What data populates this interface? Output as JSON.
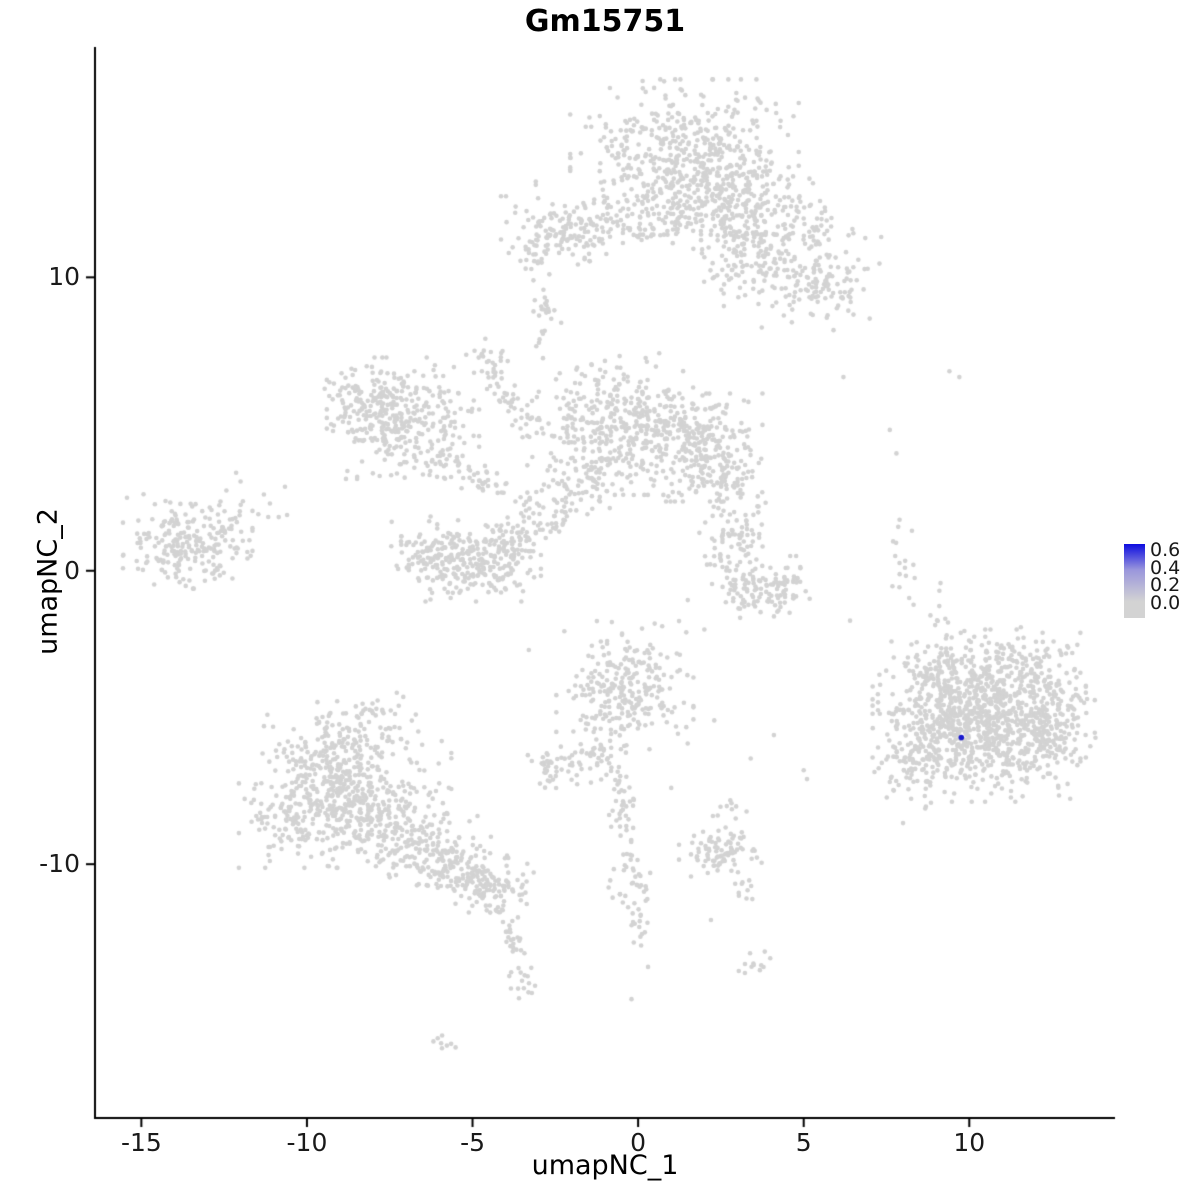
{
  "title": "Gm15751",
  "axes": {
    "x": {
      "label": "umapNC_1",
      "ticks": [
        -15,
        -10,
        -5,
        0,
        5,
        10
      ]
    },
    "y": {
      "label": "umapNC_2",
      "ticks": [
        10,
        0,
        -10
      ]
    }
  },
  "legend": {
    "labels": [
      "0.6",
      "0.4",
      "0.2",
      "0.0"
    ],
    "high_color": "#0D0DE0",
    "mid_color": "#9A96DC",
    "low_color": "#D3D3D3"
  },
  "chart_data": {
    "type": "scatter",
    "title": "Gm15751",
    "xlabel": "umapNC_1",
    "ylabel": "umapNC_2",
    "xlim": [
      -16.4,
      14.4
    ],
    "ylim": [
      -18.65,
      17.85
    ],
    "grid": false,
    "legend_position": "right",
    "point_color": "#D3D3D3",
    "point_radius": 2.3,
    "clusters": [
      [
        1.4,
        14.1,
        1.5,
        1.15,
        480
      ],
      [
        2.6,
        12.8,
        1.0,
        0.8,
        180
      ],
      [
        4.2,
        11.6,
        1.0,
        0.8,
        160
      ],
      [
        5.5,
        9.9,
        0.8,
        0.7,
        130
      ],
      [
        3.1,
        10.4,
        0.6,
        0.6,
        70
      ],
      [
        -0.1,
        12.0,
        1.3,
        0.55,
        130
      ],
      [
        -2.3,
        11.5,
        0.8,
        0.55,
        120
      ],
      [
        -2.8,
        8.9,
        0.25,
        0.3,
        12
      ],
      [
        -4.5,
        7.1,
        0.3,
        0.35,
        26
      ],
      [
        -7.1,
        5.2,
        1.0,
        0.9,
        300
      ],
      [
        -8.2,
        5.6,
        0.55,
        0.55,
        80
      ],
      [
        -0.7,
        5.0,
        1.15,
        1.05,
        360
      ],
      [
        1.8,
        4.2,
        0.85,
        0.8,
        260
      ],
      [
        2.7,
        3.0,
        0.5,
        0.5,
        60
      ],
      [
        -1.6,
        3.0,
        0.5,
        0.6,
        70
      ],
      [
        -6.1,
        0.7,
        0.6,
        0.5,
        90
      ],
      [
        -5.2,
        0.1,
        0.75,
        0.5,
        130
      ],
      [
        -4.2,
        0.4,
        0.55,
        0.5,
        90
      ],
      [
        -3.8,
        1.2,
        0.4,
        0.4,
        50
      ],
      [
        -13.6,
        1.0,
        0.85,
        0.7,
        230
      ],
      [
        -12.0,
        2.3,
        0.6,
        0.5,
        16
      ],
      [
        3.0,
        1.2,
        0.5,
        0.45,
        60
      ],
      [
        3.0,
        -0.3,
        0.4,
        0.4,
        45
      ],
      [
        3.8,
        -0.8,
        0.6,
        0.35,
        70
      ],
      [
        4.5,
        -0.3,
        0.3,
        0.35,
        25
      ],
      [
        -0.4,
        -3.9,
        0.9,
        0.95,
        260
      ],
      [
        -1.2,
        -6.3,
        0.4,
        0.4,
        40
      ],
      [
        -2.5,
        -6.8,
        0.45,
        0.35,
        45
      ],
      [
        -0.2,
        -10.6,
        0.3,
        0.4,
        30
      ],
      [
        2.5,
        -9.5,
        0.55,
        0.4,
        90
      ],
      [
        2.7,
        -8.0,
        0.25,
        0.3,
        10
      ],
      [
        3.2,
        -10.9,
        0.25,
        0.25,
        10
      ],
      [
        3.3,
        -13.3,
        0.3,
        0.25,
        12
      ],
      [
        -9.2,
        -6.4,
        1.0,
        0.85,
        220
      ],
      [
        -8.4,
        -8.0,
        1.2,
        0.9,
        300
      ],
      [
        -10.1,
        -8.4,
        0.85,
        0.75,
        160
      ],
      [
        -8.0,
        -5.2,
        0.9,
        0.5,
        50
      ],
      [
        -6.6,
        -9.3,
        0.8,
        0.6,
        130
      ],
      [
        -5.3,
        -10.2,
        0.6,
        0.5,
        110
      ],
      [
        -4.3,
        -10.9,
        0.5,
        0.45,
        90
      ],
      [
        -3.5,
        -14.0,
        0.3,
        0.3,
        16
      ],
      [
        -6.0,
        -16.1,
        0.35,
        0.2,
        8
      ],
      [
        10.3,
        -4.3,
        1.4,
        1.0,
        420
      ],
      [
        10.8,
        -5.8,
        1.3,
        0.9,
        380
      ],
      [
        9.2,
        -5.3,
        0.85,
        0.85,
        200
      ],
      [
        12.2,
        -5.1,
        0.7,
        0.7,
        140
      ],
      [
        11.4,
        -3.2,
        0.85,
        0.6,
        120
      ],
      [
        8.3,
        -6.6,
        0.6,
        0.7,
        70
      ],
      [
        9.0,
        -3.4,
        0.5,
        0.5,
        60
      ]
    ],
    "strands": [
      [
        -4.3,
        6.6,
        -3.4,
        4.8,
        35,
        0.22
      ],
      [
        -6.2,
        4.0,
        -3.8,
        2.5,
        55,
        0.25
      ],
      [
        -2.0,
        2.6,
        -2.8,
        1.2,
        30,
        0.2
      ],
      [
        -3.6,
        1.8,
        -2.9,
        2.6,
        20,
        0.2
      ],
      [
        8.0,
        1.5,
        7.9,
        -1.2,
        14,
        0.25
      ],
      [
        -0.6,
        -6.6,
        -0.3,
        -9.8,
        45,
        0.18
      ],
      [
        -0.1,
        -11.4,
        0.1,
        -12.7,
        16,
        0.15
      ],
      [
        -4.2,
        -11.6,
        -3.6,
        -13.2,
        22,
        0.15
      ],
      [
        8.6,
        -0.5,
        9.3,
        -2.2,
        12,
        0.3
      ],
      [
        -2.85,
        9.6,
        -2.95,
        7.3,
        14,
        0.12
      ],
      [
        -3.4,
        10.8,
        -2.9,
        9.8,
        10,
        0.15
      ]
    ],
    "outliers": [
      [
        7.6,
        4.8
      ],
      [
        7.8,
        4.0
      ],
      [
        9.4,
        6.8
      ],
      [
        9.7,
        6.6
      ],
      [
        7.7,
        1.0
      ],
      [
        6.4,
        -1.7
      ],
      [
        5.0,
        -6.8
      ],
      [
        5.1,
        -7.1
      ],
      [
        4.1,
        -5.6
      ],
      [
        3.4,
        -6.4
      ],
      [
        -3.0,
        6.1
      ],
      [
        2.0,
        -2.0
      ],
      [
        1.5,
        -1.0
      ],
      [
        0.5,
        -1.8
      ],
      [
        -11.3,
        2.6
      ],
      [
        -10.6,
        1.9
      ],
      [
        4.4,
        8.7
      ],
      [
        5.9,
        8.2
      ],
      [
        2.3,
        -5.1
      ],
      [
        1.0,
        -7.4
      ],
      [
        -0.2,
        -14.6
      ],
      [
        0.3,
        -13.5
      ],
      [
        6.2,
        6.6
      ],
      [
        -3.3,
        -2.7
      ],
      [
        -1.5,
        -2.9
      ],
      [
        2.9,
        2.0
      ],
      [
        8.0,
        -8.6
      ],
      [
        7.6,
        -7.2
      ],
      [
        2.2,
        -11.9
      ],
      [
        -2.6,
        4.6
      ]
    ],
    "highlight": {
      "x": 9.76,
      "y": -5.68,
      "value": 0.6,
      "color": "#1A1ACD"
    }
  }
}
